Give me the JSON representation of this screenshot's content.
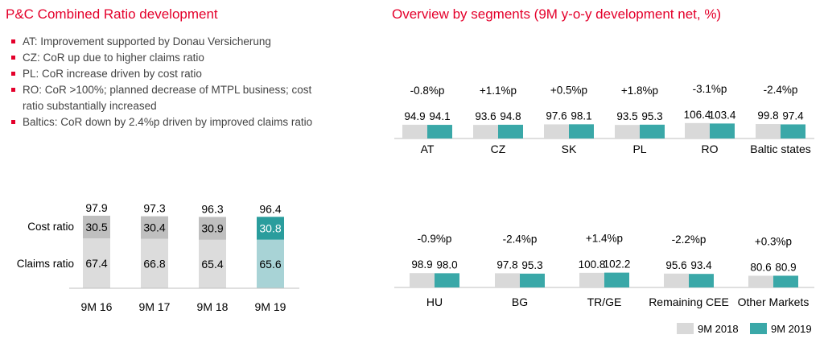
{
  "left_panel": {
    "title": "P&C Combined Ratio development",
    "bullets": [
      "AT: Improvement supported by Donau Versicherung",
      "CZ: CoR up due to higher claims ratio",
      "PL: CoR increase driven by cost ratio",
      "RO: CoR >100%; planned decrease of MTPL business; cost ratio substantially increased",
      "Baltics: CoR down by 2.4%p driven by improved claims ratio"
    ]
  },
  "right_panel": {
    "title": "Overview by segments (9M y-o-y development net, %)"
  },
  "colors": {
    "title_red": "#e4002b",
    "bar_2018": "#d9d9d9",
    "bar_2019": "#3aa8a8",
    "cost_ratio_grey": "#bfbfbf",
    "claims_ratio_light": "#dcdcdc",
    "cost_ratio_2019": "#2a9d9d",
    "claims_ratio_2019": "#a8d3d6"
  },
  "chart_data": [
    {
      "type": "bar",
      "stacked": true,
      "categories": [
        "9M 16",
        "9M 17",
        "9M 18",
        "9M 19"
      ],
      "series": [
        {
          "name": "Claims ratio",
          "values": [
            67.4,
            66.8,
            65.4,
            65.6
          ]
        },
        {
          "name": "Cost ratio",
          "values": [
            30.5,
            30.4,
            30.9,
            30.8
          ]
        }
      ],
      "totals": [
        "97.9",
        "97.3",
        "96.3",
        "96.4"
      ],
      "highlight_category": "9M 19"
    },
    {
      "type": "bar",
      "legend_position": "bottom-right",
      "legend": [
        "9M 2018",
        "9M 2019"
      ],
      "categories": [
        "AT",
        "CZ",
        "SK",
        "PL",
        "RO",
        "Baltic states",
        "HU",
        "BG",
        "TR/GE",
        "Remaining CEE",
        "Other Markets"
      ],
      "series": [
        {
          "name": "9M 2018",
          "values": [
            94.9,
            93.6,
            97.6,
            93.5,
            106.4,
            99.8,
            98.9,
            97.8,
            100.8,
            95.6,
            80.6
          ]
        },
        {
          "name": "9M 2019",
          "values": [
            94.1,
            94.8,
            98.1,
            95.3,
            103.4,
            97.4,
            98.0,
            95.3,
            102.2,
            93.4,
            80.9
          ]
        }
      ],
      "changes": [
        "-0.8%p",
        "+1.1%p",
        "+0.5%p",
        "+1.8%p",
        "-3.1%p",
        "-2.4%p",
        "-0.9%p",
        "-2.4%p",
        "+1.4%p",
        "-2.2%p",
        "+0.3%p"
      ]
    }
  ]
}
